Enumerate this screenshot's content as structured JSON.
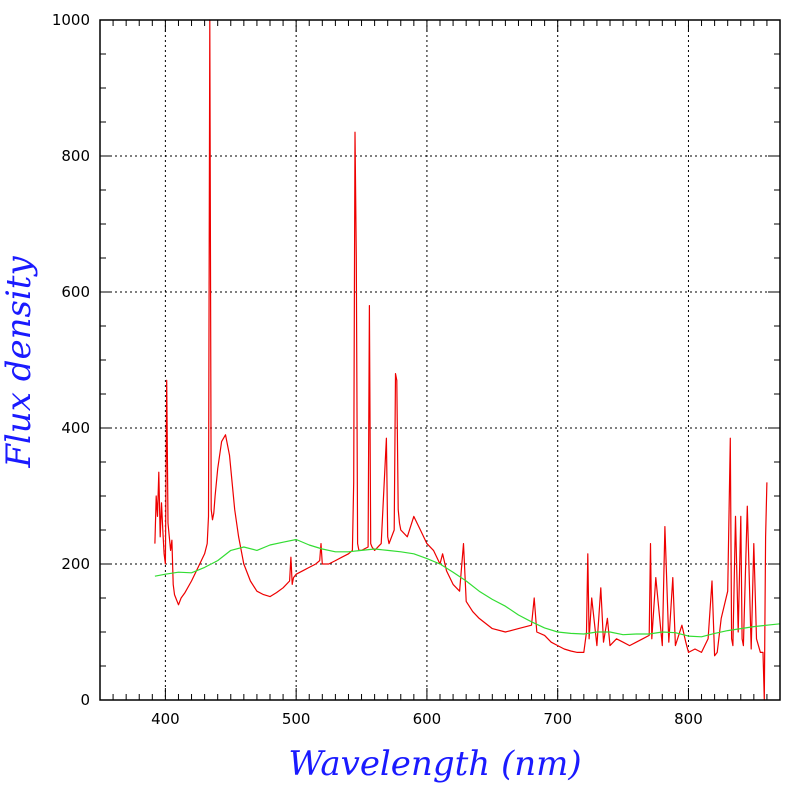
{
  "chart_data": {
    "type": "line",
    "title": "",
    "xlabel": "Wavelength (nm)",
    "ylabel": "Flux density",
    "xlim": [
      350,
      870
    ],
    "ylim": [
      0,
      1000
    ],
    "x_ticks": [
      400,
      500,
      600,
      700,
      800
    ],
    "y_ticks": [
      0,
      200,
      400,
      600,
      800,
      1000
    ],
    "x_tick_labels": [
      "400",
      "500",
      "600",
      "700",
      "800"
    ],
    "y_tick_labels": [
      "0",
      "200",
      "400",
      "600",
      "800",
      "1000"
    ],
    "grid": true,
    "label_color": "#1a1aff",
    "series": [
      {
        "color": "#ee0000",
        "x": [
          392,
          393,
          394,
          395,
          396,
          397,
          398,
          399,
          400,
          401,
          402,
          403,
          404,
          405,
          406,
          407,
          408,
          410,
          412,
          415,
          420,
          425,
          430,
          432,
          433,
          434,
          435,
          436,
          437,
          438,
          440,
          443,
          446,
          449,
          451,
          453,
          456,
          460,
          465,
          470,
          475,
          480,
          485,
          490,
          495,
          496,
          497,
          498,
          500,
          505,
          510,
          515,
          518,
          519,
          520,
          525,
          530,
          535,
          540,
          543,
          544,
          545,
          546,
          547,
          548,
          550,
          555,
          556,
          557,
          558,
          560,
          565,
          569,
          570,
          571,
          575,
          576,
          577,
          578,
          579,
          580,
          585,
          590,
          595,
          600,
          605,
          610,
          612,
          615,
          620,
          625,
          628,
          630,
          635,
          640,
          650,
          660,
          670,
          680,
          682,
          684,
          690,
          695,
          700,
          705,
          710,
          715,
          720,
          722,
          723,
          724,
          726,
          730,
          733,
          735,
          738,
          740,
          745,
          750,
          755,
          760,
          765,
          770,
          771,
          772,
          775,
          780,
          782,
          785,
          788,
          790,
          795,
          798,
          800,
          805,
          810,
          815,
          818,
          820,
          822,
          825,
          830,
          832,
          833,
          834,
          836,
          838,
          840,
          841,
          842,
          845,
          848,
          850,
          852,
          855,
          857,
          858,
          859,
          860
        ],
        "y": [
          230,
          300,
          270,
          335,
          240,
          290,
          250,
          215,
          200,
          470,
          260,
          240,
          220,
          235,
          170,
          155,
          150,
          140,
          150,
          158,
          175,
          195,
          215,
          230,
          270,
          1000,
          280,
          265,
          275,
          300,
          340,
          380,
          390,
          360,
          320,
          280,
          240,
          200,
          175,
          160,
          155,
          152,
          158,
          165,
          175,
          210,
          170,
          180,
          185,
          190,
          195,
          200,
          205,
          230,
          200,
          200,
          205,
          210,
          215,
          220,
          320,
          835,
          650,
          230,
          220,
          220,
          225,
          580,
          230,
          225,
          220,
          230,
          385,
          240,
          230,
          250,
          480,
          470,
          280,
          260,
          250,
          240,
          270,
          250,
          230,
          220,
          200,
          215,
          190,
          170,
          160,
          230,
          145,
          130,
          120,
          105,
          100,
          105,
          110,
          150,
          100,
          95,
          85,
          80,
          75,
          72,
          70,
          70,
          100,
          215,
          90,
          150,
          80,
          165,
          85,
          120,
          80,
          90,
          85,
          80,
          85,
          90,
          95,
          230,
          90,
          180,
          80,
          255,
          85,
          180,
          80,
          110,
          85,
          70,
          75,
          70,
          90,
          175,
          65,
          70,
          120,
          160,
          385,
          90,
          80,
          270,
          100,
          270,
          90,
          80,
          285,
          75,
          230,
          90,
          70,
          70,
          0,
          240,
          320
        ]
      },
      {
        "color": "#33dd33",
        "x": [
          392,
          400,
          410,
          420,
          430,
          440,
          450,
          460,
          470,
          480,
          490,
          500,
          510,
          520,
          530,
          540,
          550,
          560,
          570,
          580,
          590,
          600,
          610,
          620,
          630,
          640,
          650,
          660,
          670,
          680,
          690,
          700,
          710,
          720,
          730,
          740,
          750,
          760,
          770,
          780,
          790,
          800,
          810,
          820,
          830,
          840,
          850,
          860,
          870
        ],
        "y": [
          182,
          185,
          188,
          187,
          195,
          205,
          220,
          225,
          220,
          228,
          232,
          236,
          228,
          222,
          218,
          218,
          220,
          222,
          220,
          218,
          215,
          208,
          200,
          188,
          175,
          160,
          148,
          138,
          125,
          115,
          106,
          100,
          98,
          97,
          100,
          100,
          96,
          97,
          97,
          100,
          99,
          94,
          93,
          98,
          102,
          105,
          108,
          110,
          112
        ]
      }
    ]
  }
}
